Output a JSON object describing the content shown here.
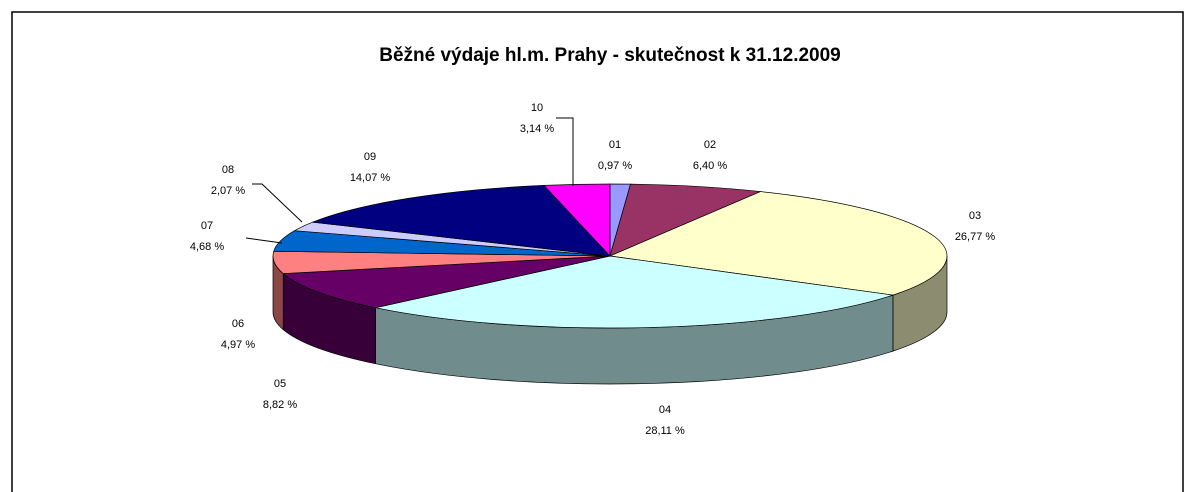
{
  "chart_data": {
    "type": "pie",
    "title": "Běžné výdaje hl.m. Prahy - skutečnost k 31.12.2009",
    "categories": [
      "01",
      "02",
      "03",
      "04",
      "05",
      "06",
      "07",
      "08",
      "09",
      "10"
    ],
    "values": [
      0.97,
      6.4,
      26.77,
      28.11,
      8.82,
      4.97,
      4.68,
      2.07,
      14.07,
      3.14
    ],
    "value_labels": [
      "0,97 %",
      "6,40 %",
      "26,77 %",
      "28,11 %",
      "8,82 %",
      "4,97 %",
      "4,68 %",
      "2,07 %",
      "14,07 %",
      "3,14 %"
    ],
    "colors": [
      "#9999ff",
      "#993366",
      "#ffffcc",
      "#ccffff",
      "#660066",
      "#ff8080",
      "#0066cc",
      "#ccccff",
      "#000080",
      "#ff00ff"
    ]
  }
}
